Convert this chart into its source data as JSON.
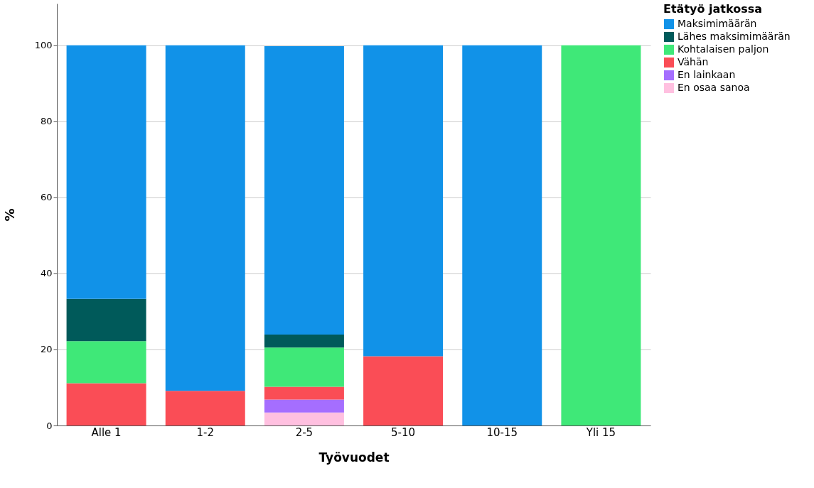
{
  "chart_data": {
    "type": "bar",
    "stacked": true,
    "xlabel": "Työvuodet",
    "ylabel": "%",
    "legend_title": "Etätyö jatkossa",
    "categories": [
      "Alle 1",
      "1-2",
      "2-5",
      "5-10",
      "10-15",
      "Yli 15"
    ],
    "series": [
      {
        "name": "En osaa sanoa",
        "color": "#ffc0e0",
        "values": [
          null,
          null,
          3.4,
          null,
          null,
          null
        ]
      },
      {
        "name": "En lainkaan",
        "color": "#a56eff",
        "values": [
          null,
          null,
          3.4,
          null,
          null,
          null
        ]
      },
      {
        "name": "Vähän",
        "color": "#fa4d56",
        "values": [
          11.1,
          9.1,
          3.4,
          18.2,
          null,
          null
        ]
      },
      {
        "name": "Kohtalaisen paljon",
        "color": "#3fe878",
        "values": [
          11.1,
          null,
          10.3,
          null,
          null,
          100
        ]
      },
      {
        "name": "Lähes maksimimäärän",
        "color": "#005a5a",
        "values": [
          11.1,
          null,
          3.4,
          null,
          null,
          null
        ]
      },
      {
        "name": "Maksimimäärän",
        "color": "#1192e8",
        "values": [
          66.7,
          90.9,
          75.9,
          81.8,
          100,
          null
        ]
      }
    ],
    "ylim": [
      0,
      111
    ],
    "yticks": [
      0,
      20,
      40,
      60,
      80,
      100
    ],
    "grid": "y",
    "legend": "top right"
  }
}
